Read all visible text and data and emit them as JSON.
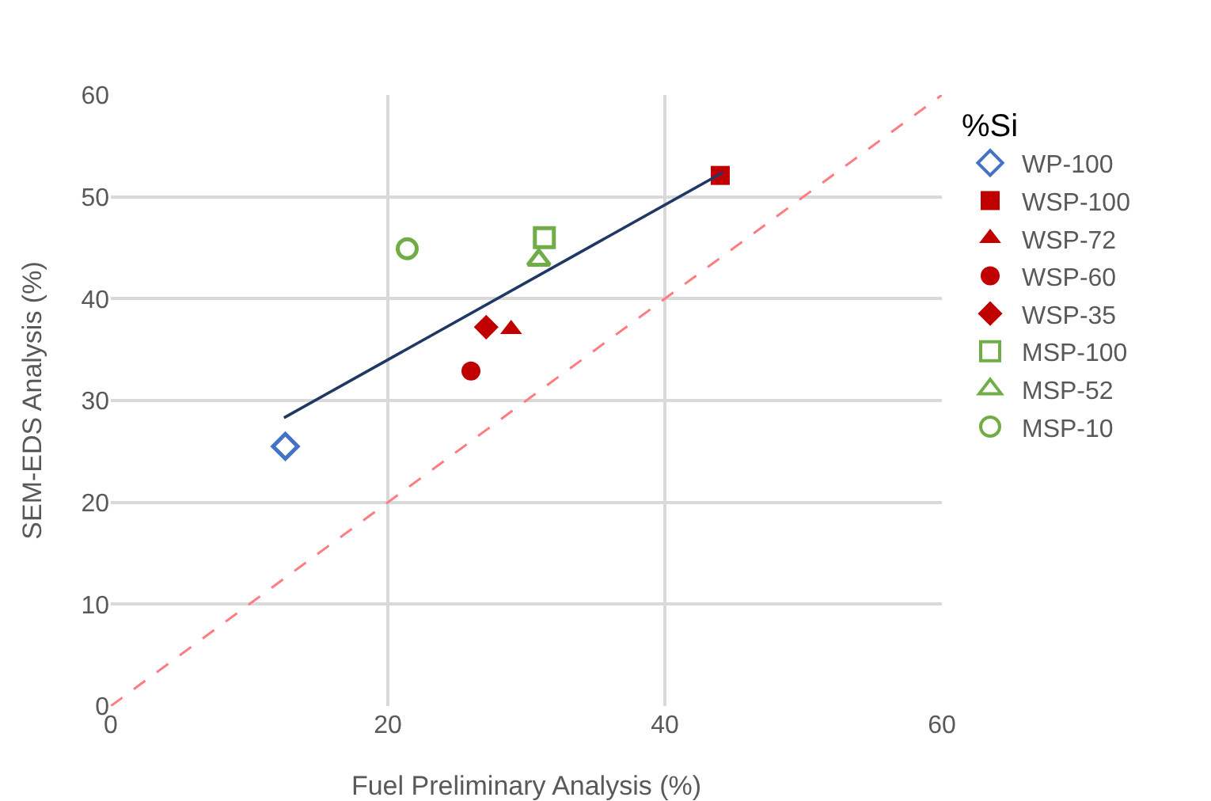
{
  "chart_data": {
    "type": "scatter",
    "xlabel": "Fuel Preliminary Analysis (%)",
    "ylabel": "SEM-EDS Analysis (%)",
    "legend_title": "%Si",
    "legend": "right",
    "grid": true,
    "xlim": [
      0,
      60
    ],
    "xticks": [
      0,
      20,
      40,
      60
    ],
    "ylim": [
      0,
      60
    ],
    "yticks": [
      0,
      10,
      20,
      30,
      40,
      50,
      60
    ],
    "series": [
      {
        "name": "WP-100",
        "color": "#4472c4",
        "marker": "diamond-open",
        "x": [
          12.6
        ],
        "values": [
          25.5
        ]
      },
      {
        "name": "WSP-100",
        "color": "#c00000",
        "marker": "square",
        "x": [
          44.0
        ],
        "values": [
          52.1
        ]
      },
      {
        "name": "WSP-72",
        "color": "#c00000",
        "marker": "triangle",
        "x": [
          28.9
        ],
        "values": [
          37.0
        ]
      },
      {
        "name": "WSP-60",
        "color": "#c00000",
        "marker": "circle",
        "x": [
          26.0
        ],
        "values": [
          32.9
        ]
      },
      {
        "name": "WSP-35",
        "color": "#c00000",
        "marker": "diamond",
        "x": [
          27.1
        ],
        "values": [
          37.2
        ]
      },
      {
        "name": "MSP-100",
        "color": "#70ad47",
        "marker": "square-open",
        "x": [
          31.3
        ],
        "values": [
          46.0
        ]
      },
      {
        "name": "MSP-52",
        "color": "#70ad47",
        "marker": "triangle-open",
        "x": [
          30.9
        ],
        "values": [
          43.8
        ]
      },
      {
        "name": "MSP-10",
        "color": "#70ad47",
        "marker": "circle-open",
        "x": [
          21.4
        ],
        "values": [
          44.9
        ]
      },
      {
        "type": "line",
        "color": "#203864",
        "marker": "none",
        "line_style": "solid",
        "x": [
          12.5,
          44.2
        ],
        "values": [
          28.3,
          52.4
        ]
      },
      {
        "type": "line",
        "color": "#ff7c80",
        "marker": "none",
        "line_style": "dashed",
        "x": [
          0,
          60
        ],
        "values": [
          0,
          60
        ]
      }
    ]
  }
}
